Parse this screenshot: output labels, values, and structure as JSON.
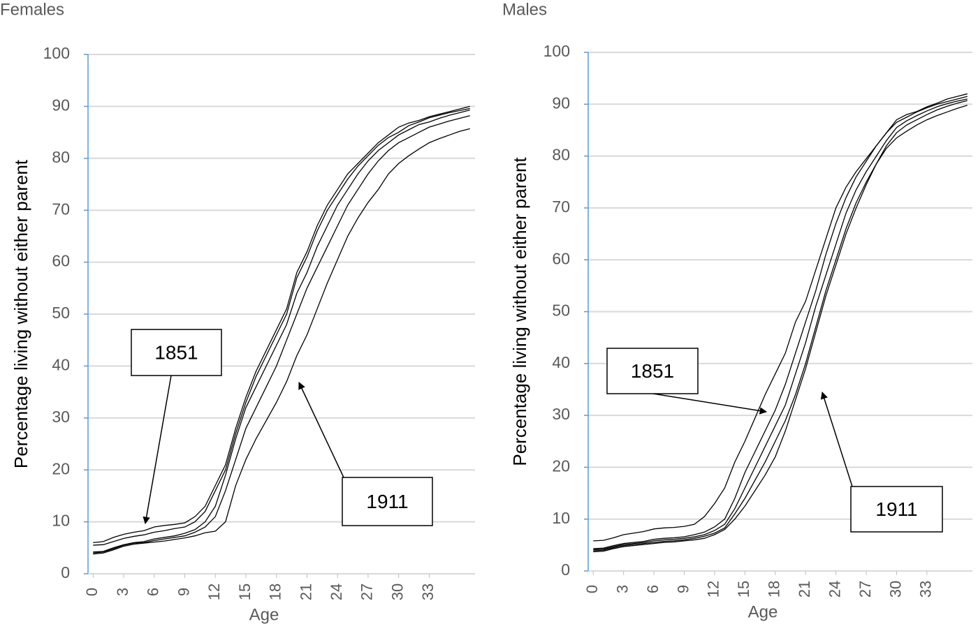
{
  "chart_data": [
    {
      "type": "line",
      "title": "Females",
      "x_label": "Age",
      "y_label": "Percentage living without either parent",
      "x": [
        0,
        1,
        2,
        3,
        4,
        5,
        6,
        7,
        8,
        9,
        10,
        11,
        12,
        13,
        14,
        15,
        16,
        17,
        18,
        19,
        20,
        21,
        22,
        23,
        24,
        25,
        26,
        27,
        28,
        29,
        30,
        31,
        32,
        33,
        34,
        35,
        36,
        37
      ],
      "xlim": [
        -0.5,
        37.5
      ],
      "xticks": [
        0,
        3,
        6,
        9,
        12,
        15,
        18,
        21,
        24,
        27,
        30,
        33
      ],
      "ylim": [
        0,
        100
      ],
      "yticks": [
        0,
        10,
        20,
        30,
        40,
        50,
        60,
        70,
        80,
        90,
        100
      ],
      "grid": true,
      "series": [
        {
          "color": "#000000",
          "values": [
            6,
            6.2,
            7,
            7.6,
            8,
            8.3,
            9,
            9.3,
            9.5,
            9.8,
            11,
            13,
            17,
            21,
            28,
            34,
            39,
            43,
            47,
            51,
            58,
            62,
            67,
            71,
            74,
            77,
            79,
            81,
            83,
            84.5,
            86,
            86.8,
            87.3,
            88,
            88.5,
            89,
            89.5,
            90
          ]
        },
        {
          "color": "#000000",
          "values": [
            5.5,
            5.6,
            6.2,
            6.8,
            7.2,
            7.5,
            8,
            8.3,
            8.7,
            9,
            10,
            12,
            16,
            20,
            27,
            33,
            38,
            42,
            46,
            50,
            57,
            61,
            66,
            70,
            73,
            76,
            78.5,
            80.5,
            82.5,
            84,
            85,
            86.3,
            87,
            87.8,
            88.3,
            88.8,
            89.2,
            89.6
          ]
        },
        {
          "color": "#000000",
          "values": [
            4.2,
            4.3,
            5,
            5.6,
            6,
            6.2,
            6.7,
            7,
            7.3,
            7.8,
            8.5,
            10,
            13,
            19,
            26,
            32,
            36,
            40,
            44,
            48,
            54,
            58,
            63,
            67,
            71,
            74,
            77,
            79.5,
            81.5,
            83,
            84.5,
            85.5,
            86.5,
            87,
            87.7,
            88.3,
            88.8,
            89.3
          ]
        },
        {
          "color": "#000000",
          "values": [
            4,
            4.2,
            4.8,
            5.5,
            5.9,
            6,
            6.4,
            6.7,
            7,
            7.3,
            8,
            9,
            11,
            16,
            22,
            28,
            32,
            36,
            40,
            45,
            50,
            55,
            59,
            63,
            67,
            71,
            74,
            77,
            79.5,
            81.5,
            83,
            84,
            85,
            86,
            86.6,
            87.2,
            87.7,
            88.2
          ]
        },
        {
          "color": "#000000",
          "values": [
            3.8,
            4,
            4.6,
            5.3,
            5.7,
            5.9,
            6.1,
            6.3,
            6.6,
            6.9,
            7.3,
            7.9,
            8.2,
            10,
            17,
            22,
            26,
            29.5,
            33,
            37,
            42,
            46,
            51,
            56,
            60.5,
            65,
            68.5,
            71.5,
            74,
            77,
            79,
            80.5,
            81.8,
            83,
            83.8,
            84.5,
            85.2,
            85.7
          ]
        }
      ],
      "annotations": [
        "1851",
        "1911"
      ]
    },
    {
      "type": "line",
      "title": "Males",
      "x_label": "Age",
      "y_label": "Percentage living without either parent",
      "x": [
        0,
        1,
        2,
        3,
        4,
        5,
        6,
        7,
        8,
        9,
        10,
        11,
        12,
        13,
        14,
        15,
        16,
        17,
        18,
        19,
        20,
        21,
        22,
        23,
        24,
        25,
        26,
        27,
        28,
        29,
        30,
        31,
        32,
        33,
        34,
        35,
        36,
        37
      ],
      "xlim": [
        -0.5,
        37.5
      ],
      "xticks": [
        0,
        3,
        6,
        9,
        12,
        15,
        18,
        21,
        24,
        27,
        30,
        33
      ],
      "ylim": [
        0,
        100
      ],
      "yticks": [
        0,
        10,
        20,
        30,
        40,
        50,
        60,
        70,
        80,
        90,
        100
      ],
      "grid": true,
      "series": [
        {
          "color": "#000000",
          "values": [
            5.8,
            5.9,
            6.4,
            7,
            7.3,
            7.6,
            8.1,
            8.3,
            8.4,
            8.6,
            9,
            10.5,
            13,
            16,
            21,
            25,
            29.5,
            34,
            38,
            42,
            48,
            52,
            58,
            64,
            70,
            74,
            77,
            79.5,
            82,
            84.5,
            87,
            88,
            88.6,
            89.5,
            90.2,
            91,
            91.5,
            92
          ]
        },
        {
          "color": "#000000",
          "values": [
            4.3,
            4.4,
            4.9,
            5.3,
            5.5,
            5.7,
            6.1,
            6.3,
            6.4,
            6.6,
            7,
            7.5,
            8.5,
            10,
            14,
            19,
            23,
            27,
            31,
            36,
            42,
            48,
            54,
            61,
            67,
            72,
            76,
            79,
            82,
            84.5,
            86.5,
            87.5,
            88.5,
            89.3,
            90,
            90.5,
            91,
            91.5
          ]
        },
        {
          "color": "#000000",
          "values": [
            4.1,
            4.2,
            4.7,
            5.1,
            5.3,
            5.5,
            5.8,
            6,
            6.1,
            6.3,
            6.6,
            7,
            7.8,
            9,
            12,
            16,
            20,
            24,
            28,
            32,
            38,
            44,
            51,
            57,
            63,
            69,
            73.5,
            77,
            80,
            83,
            85.5,
            86.8,
            87.8,
            88.7,
            89.5,
            90.1,
            90.6,
            91
          ]
        },
        {
          "color": "#000000",
          "values": [
            3.9,
            4,
            4.5,
            4.9,
            5.1,
            5.3,
            5.5,
            5.7,
            5.8,
            6,
            6.3,
            6.7,
            7.3,
            8.3,
            11,
            14,
            17.5,
            21,
            25,
            29,
            34,
            40,
            47,
            54,
            60,
            66,
            71,
            75,
            78.5,
            82,
            84.5,
            86,
            87,
            88,
            88.9,
            89.6,
            90.2,
            90.7
          ]
        },
        {
          "color": "#000000",
          "values": [
            3.7,
            3.8,
            4.3,
            4.7,
            4.9,
            5.1,
            5.3,
            5.5,
            5.6,
            5.8,
            6,
            6.3,
            7,
            8,
            10,
            12.5,
            15.5,
            18.5,
            22,
            27,
            33,
            39,
            46,
            53,
            59,
            65,
            70,
            74.5,
            78.5,
            81.5,
            83.5,
            84.8,
            86,
            87,
            87.8,
            88.5,
            89.2,
            89.8
          ]
        }
      ],
      "annotations": [
        "1851",
        "1911"
      ]
    }
  ]
}
